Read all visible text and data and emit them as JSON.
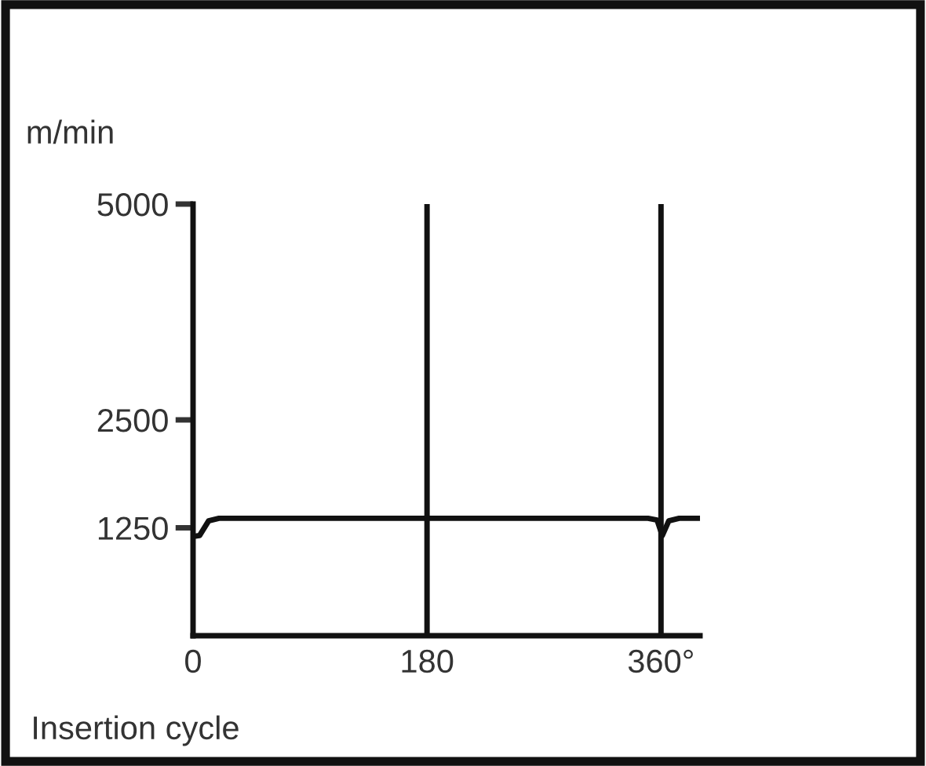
{
  "chart_data": {
    "type": "line",
    "ylabel": "m/min",
    "xlabel": "Insertion cycle",
    "x": [
      0,
      5,
      12,
      20,
      350,
      357,
      361,
      366,
      374,
      388
    ],
    "series": [
      {
        "color": "#111111",
        "values": [
          1150,
          1160,
          1330,
          1360,
          1360,
          1340,
          1160,
          1330,
          1360,
          1360
        ]
      }
    ],
    "xlim": [
      0,
      390
    ],
    "ylim": [
      0,
      5000
    ],
    "xticks": [
      0,
      180,
      {
        "value": 360,
        "label": "360°"
      }
    ],
    "yticks": [
      1250,
      2500,
      5000
    ],
    "ref_lines": [
      {
        "axis": "x",
        "value": 180,
        "label": null,
        "color": "#111111"
      },
      {
        "axis": "x",
        "value": 360,
        "label": null,
        "color": "#111111"
      }
    ],
    "grid": false,
    "legend": false,
    "marker": "none",
    "line_style": "solid"
  }
}
